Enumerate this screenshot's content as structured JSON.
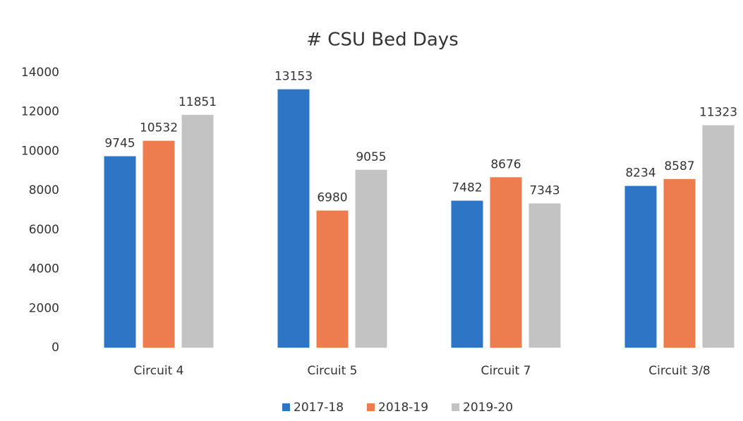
{
  "chart_data": {
    "type": "bar",
    "title": "# CSU Bed Days",
    "categories": [
      "Circuit 4",
      "Circuit 5",
      "Circuit 7",
      "Circuit 3/8"
    ],
    "series": [
      {
        "name": "2017-18",
        "color": "#2e75c6",
        "values": [
          9745,
          13153,
          7482,
          8234
        ]
      },
      {
        "name": "2018-19",
        "color": "#ed7d4f",
        "values": [
          10532,
          6980,
          8676,
          8587
        ]
      },
      {
        "name": "2019-20",
        "color": "#c3c3c3",
        "values": [
          11851,
          9055,
          7343,
          11323
        ]
      }
    ],
    "ylim": [
      0,
      14000
    ],
    "yticks": [
      0,
      2000,
      4000,
      6000,
      8000,
      10000,
      12000,
      14000
    ],
    "grid": false,
    "legend": "bottom"
  }
}
